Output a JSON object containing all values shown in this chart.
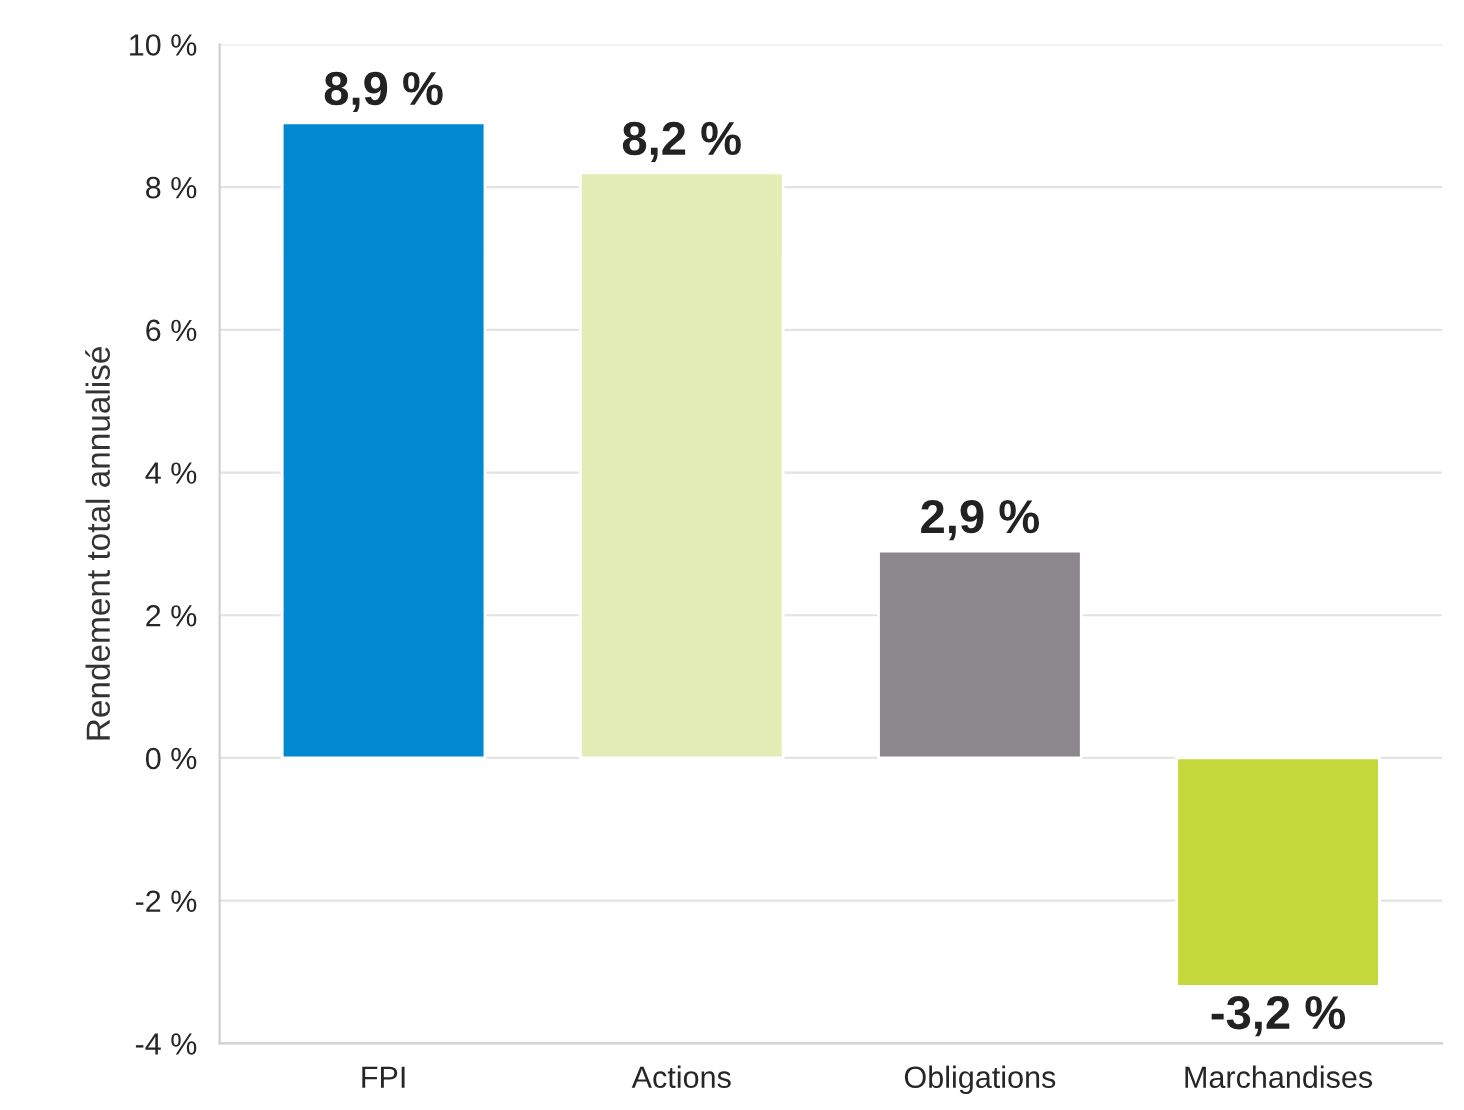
{
  "chart_data": {
    "type": "bar",
    "ylabel": "Rendement total annualisé",
    "categories": [
      "FPI",
      "Actions",
      "Obligations",
      "Marchandises"
    ],
    "values": [
      8.9,
      8.2,
      2.9,
      -3.2
    ],
    "colors": [
      "#0089d0",
      "#e3ecb4",
      "#8b878c",
      "#c5d93d"
    ],
    "value_labels": [
      "8,9 %",
      "8,2 %",
      "2,9 %",
      "-3,2 %"
    ],
    "ylim": [
      -4,
      10
    ],
    "yticks": [
      {
        "value": -4,
        "label": "-4 %"
      },
      {
        "value": -2,
        "label": "-2 %"
      },
      {
        "value": 0,
        "label": "0 %"
      },
      {
        "value": 2,
        "label": "2 %"
      },
      {
        "value": 4,
        "label": "4 %"
      },
      {
        "value": 6,
        "label": "6 %"
      },
      {
        "value": 8,
        "label": "8 %"
      },
      {
        "value": 10,
        "label": "10 %"
      }
    ],
    "grid": "y",
    "legend": false
  }
}
